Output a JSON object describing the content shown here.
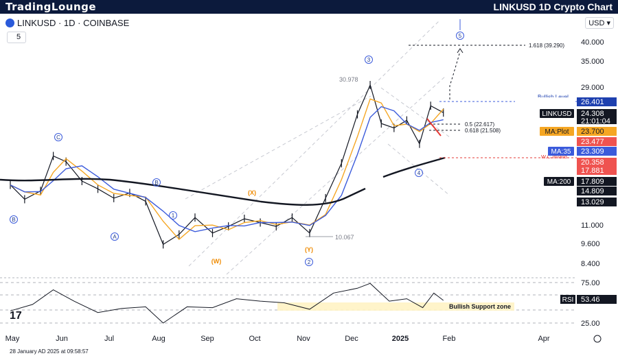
{
  "header": {
    "brand": "TradingLounge",
    "title": "LINKUSD 1D Crypto Chart"
  },
  "symbol_bar": {
    "label": "LINKUSD · 1D · COINBASE",
    "interval": "5",
    "currency": "USD"
  },
  "footer": {
    "timestamp": "28 January AD 2025 at 09:58:57"
  },
  "colors": {
    "header_bg": "#0c1a3c",
    "price": "#131722",
    "ma_orange": "#f5a623",
    "ma_blue": "#3b5bdb",
    "ma200": "#131722",
    "rsi": "#131722",
    "bull_level": "#3b5bdb",
    "wc_red": "#e53935"
  },
  "chart_data": {
    "type": "line",
    "price_axis": {
      "ticks": [
        "40.000",
        "35.000",
        "29.000",
        "11.000",
        "9.600",
        "8.400"
      ],
      "scale": "log"
    },
    "rsi_axis": {
      "ticks": [
        "75.00",
        "25.00"
      ]
    },
    "time_axis": [
      "May",
      "Jun",
      "Jul",
      "Aug",
      "Sep",
      "Oct",
      "Nov",
      "Dec",
      "2025",
      "Feb",
      "Apr"
    ],
    "price_labels": [
      {
        "name": "Bullish Level",
        "value": "26.401",
        "color": "#1e40af"
      },
      {
        "name": "LINKUSD",
        "value": "24.308",
        "sub": "21:01:04",
        "color": "#131722"
      },
      {
        "name": "MA:Plot",
        "value": "23.700",
        "color": "#f5a623"
      },
      {
        "name": "",
        "value": "23.477",
        "color": "#ef5350"
      },
      {
        "name": "MA:35",
        "value": "23.309",
        "color": "#3b5bdb"
      },
      {
        "name": "",
        "value": "20.358",
        "color": "#ef5350"
      },
      {
        "name": "",
        "value": "17.881",
        "color": "#ef5350"
      },
      {
        "name": "MA:200",
        "value": "17.809",
        "color": "#131722"
      },
      {
        "name": "",
        "value": "14.809",
        "color": "#131722"
      },
      {
        "name": "",
        "value": "13.029",
        "color": "#131722"
      }
    ],
    "rsi_label": {
      "name": "RSI",
      "value": "53.46"
    },
    "annotations": {
      "fib_1618": "1.618 (39.290)",
      "fib_05": "0.5 (22.617)",
      "fib_0618": "0.618 (21.508)",
      "bullish_level": "Bullish Level",
      "wc_invalid": "W.C.Invalid",
      "high": "30.978",
      "low": "10.067",
      "support_zone": "Bullish Support zone"
    },
    "waves": {
      "blue": [
        "B",
        "C",
        "B",
        "A",
        "B",
        "1",
        "2",
        "3",
        "4",
        "5"
      ],
      "orange": [
        "(W)",
        "(X)",
        "(Y)"
      ]
    },
    "price_series": [
      [
        "2024-05-01",
        14.6
      ],
      [
        "2024-05-10",
        13.2
      ],
      [
        "2024-05-20",
        14.0
      ],
      [
        "2024-05-28",
        17.9
      ],
      [
        "2024-06-05",
        17.2
      ],
      [
        "2024-06-15",
        15.0
      ],
      [
        "2024-06-25",
        14.2
      ],
      [
        "2024-07-05",
        13.3
      ],
      [
        "2024-07-15",
        13.8
      ],
      [
        "2024-07-25",
        13.0
      ],
      [
        "2024-08-05",
        9.6
      ],
      [
        "2024-08-15",
        10.3
      ],
      [
        "2024-08-25",
        11.6
      ],
      [
        "2024-09-05",
        10.4
      ],
      [
        "2024-09-15",
        10.9
      ],
      [
        "2024-09-25",
        11.5
      ],
      [
        "2024-10-05",
        11.2
      ],
      [
        "2024-10-15",
        10.9
      ],
      [
        "2024-10-25",
        11.6
      ],
      [
        "2024-11-05",
        10.4
      ],
      [
        "2024-11-15",
        13.3
      ],
      [
        "2024-11-25",
        17.0
      ],
      [
        "2024-12-05",
        24.0
      ],
      [
        "2024-12-13",
        29.5
      ],
      [
        "2024-12-20",
        22.5
      ],
      [
        "2024-12-28",
        21.8
      ],
      [
        "2025-01-05",
        23.0
      ],
      [
        "2025-01-13",
        19.5
      ],
      [
        "2025-01-20",
        25.5
      ],
      [
        "2025-01-28",
        24.3
      ]
    ],
    "rsi_series": [
      [
        "2024-05-01",
        40
      ],
      [
        "2024-05-15",
        48
      ],
      [
        "2024-05-28",
        66
      ],
      [
        "2024-06-10",
        52
      ],
      [
        "2024-06-25",
        38
      ],
      [
        "2024-07-10",
        43
      ],
      [
        "2024-07-25",
        45
      ],
      [
        "2024-08-05",
        25
      ],
      [
        "2024-08-20",
        45
      ],
      [
        "2024-09-05",
        44
      ],
      [
        "2024-09-20",
        55
      ],
      [
        "2024-10-05",
        52
      ],
      [
        "2024-10-20",
        50
      ],
      [
        "2024-11-05",
        42
      ],
      [
        "2024-11-20",
        62
      ],
      [
        "2024-12-05",
        68
      ],
      [
        "2024-12-13",
        74
      ],
      [
        "2024-12-25",
        52
      ],
      [
        "2025-01-05",
        55
      ],
      [
        "2025-01-15",
        44
      ],
      [
        "2025-01-22",
        62
      ],
      [
        "2025-01-28",
        53
      ]
    ]
  }
}
